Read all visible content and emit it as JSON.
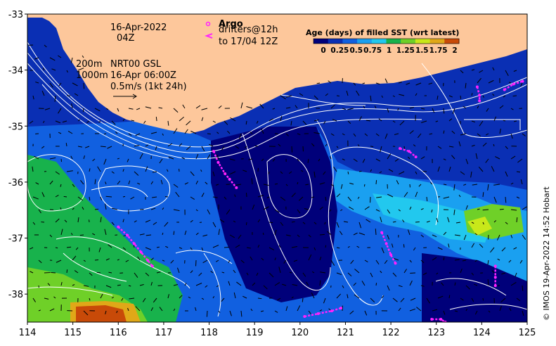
{
  "colors": {
    "land": "#fdc79b",
    "age0": "#00007a",
    "age1": "#0a2fb4",
    "age2": "#1160e0",
    "age3": "#1aa0f0",
    "age4": "#22c8ee",
    "age5": "#18b24c",
    "age6": "#6fd028",
    "age7": "#c8e81a",
    "age8": "#e0a818",
    "age9": "#c84a08",
    "drifter": "#ff22ff",
    "contour": "#ffffff"
  },
  "map": {
    "lon_range": [
      114,
      125
    ],
    "lat_range": [
      -38.5,
      -33
    ],
    "x_ticks": [
      "114",
      "115",
      "116",
      "117",
      "118",
      "119",
      "120",
      "121",
      "122",
      "123",
      "124",
      "125"
    ],
    "y_ticks": [
      "-33",
      "-34",
      "-35",
      "-36",
      "-37",
      "-38"
    ]
  },
  "annotations": {
    "date": "16-Apr-2022",
    "time": "04Z",
    "argo": "Argo",
    "drifters_line1": "drifters@12h",
    "drifters_line2": "to 17/04 12Z",
    "iso_200": "200m",
    "iso_1000": "1000m",
    "nrt": "NRT00 GSL",
    "nrt_time": "16-Apr 06:00Z",
    "scale": "0.5m/s (1kt 24h)",
    "credit": "© IMOS 19-Apr-2022 14:52 Hobart"
  },
  "colorbar": {
    "title": "Age (days) of filled SST (wrt latest)",
    "labels": [
      "0",
      "0.25",
      "0.5",
      "0.75",
      "1",
      "1.25",
      "1.5",
      "1.75",
      "2"
    ],
    "colors": [
      "#00007a",
      "#0a2fb4",
      "#1160e0",
      "#1aa0f0",
      "#22c8ee",
      "#18b24c",
      "#6fd028",
      "#c8e81a",
      "#e0a818",
      "#c84a08"
    ]
  },
  "drifters": [
    {
      "name": "drifter-track-1",
      "points": [
        [
          118.1,
          -35.45
        ],
        [
          118.2,
          -35.65
        ],
        [
          118.35,
          -35.85
        ],
        [
          118.45,
          -35.95
        ],
        [
          118.6,
          -36.1
        ]
      ]
    },
    {
      "name": "drifter-track-2",
      "points": [
        [
          116.0,
          -36.8
        ],
        [
          116.2,
          -36.95
        ],
        [
          116.35,
          -37.1
        ],
        [
          116.5,
          -37.25
        ],
        [
          116.65,
          -37.4
        ],
        [
          116.75,
          -37.5
        ]
      ]
    },
    {
      "name": "drifter-track-3",
      "points": [
        [
          121.8,
          -36.9
        ],
        [
          121.9,
          -37.1
        ],
        [
          122.0,
          -37.3
        ],
        [
          122.1,
          -37.45
        ]
      ]
    },
    {
      "name": "drifter-track-4",
      "points": [
        [
          122.2,
          -35.4
        ],
        [
          122.4,
          -35.45
        ],
        [
          122.55,
          -35.55
        ]
      ]
    },
    {
      "name": "drifter-track-5",
      "points": [
        [
          124.3,
          -37.5
        ],
        [
          124.3,
          -37.7
        ],
        [
          124.3,
          -37.85
        ]
      ]
    },
    {
      "name": "drifter-track-6",
      "points": [
        [
          120.1,
          -38.4
        ],
        [
          120.4,
          -38.35
        ],
        [
          120.7,
          -38.3
        ],
        [
          120.9,
          -38.25
        ]
      ]
    },
    {
      "name": "drifter-track-7",
      "points": [
        [
          122.9,
          -38.45
        ],
        [
          123.1,
          -38.45
        ],
        [
          123.2,
          -38.5
        ]
      ]
    },
    {
      "name": "drifter-track-8",
      "points": [
        [
          123.9,
          -34.3
        ],
        [
          123.95,
          -34.45
        ],
        [
          123.95,
          -34.55
        ]
      ]
    },
    {
      "name": "drifter-track-9",
      "points": [
        [
          124.5,
          -34.35
        ],
        [
          124.7,
          -34.25
        ],
        [
          124.9,
          -34.2
        ]
      ]
    }
  ]
}
